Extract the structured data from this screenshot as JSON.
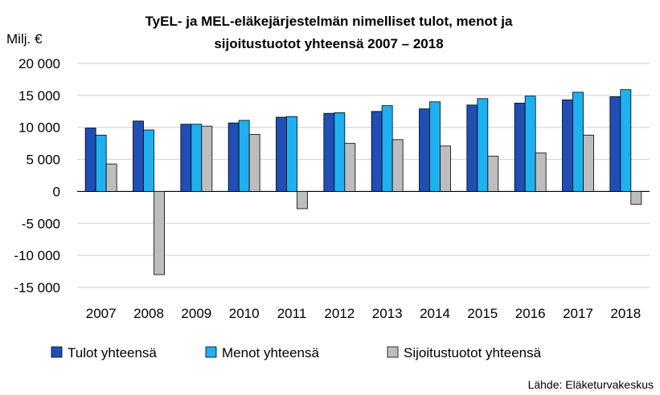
{
  "chart_data": {
    "type": "bar",
    "title_line1": "TyEL- ja MEL-eläkejärjestelmän nimelliset tulot, menot ja",
    "title_line2": "sijoitustuotot yhteensä 2007 – 2018",
    "ylabel": "Milj. €",
    "xlabel": "",
    "ylim": [
      -15000,
      20000
    ],
    "yticks": [
      20000,
      15000,
      10000,
      5000,
      0,
      -5000,
      -10000,
      -15000
    ],
    "ytick_labels": [
      "20 000",
      "15 000",
      "10 000",
      "5 000",
      "0",
      "-5 000",
      "-10 000",
      "-15 000"
    ],
    "grid": true,
    "legend_position": "bottom",
    "categories": [
      "2007",
      "2008",
      "2009",
      "2010",
      "2011",
      "2012",
      "2013",
      "2014",
      "2015",
      "2016",
      "2017",
      "2018"
    ],
    "series": [
      {
        "name": "Tulot yhteensä",
        "color": "#1f4fb4",
        "values": [
          9900,
          11000,
          10500,
          10700,
          11600,
          12200,
          12500,
          12900,
          13500,
          13800,
          14300,
          14800
        ]
      },
      {
        "name": "Menot yhteensä",
        "color": "#1fb0f0",
        "values": [
          8800,
          9600,
          10500,
          11100,
          11700,
          12300,
          13400,
          14000,
          14500,
          14900,
          15500,
          15900
        ]
      },
      {
        "name": "Sijoitustuotot yhteensä",
        "color": "#bdbdbd",
        "values": [
          4300,
          -13000,
          10200,
          8900,
          -2700,
          7500,
          8100,
          7100,
          5500,
          6000,
          8800,
          -2000
        ]
      }
    ],
    "source": "Lähde: Eläketurvakeskus"
  }
}
